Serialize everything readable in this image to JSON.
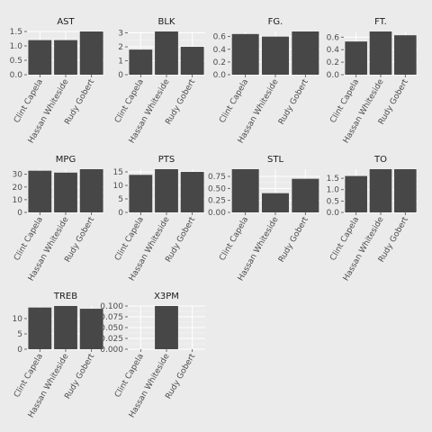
{
  "chart_data": [
    {
      "type": "bar",
      "title": "AST",
      "categories": [
        "Clint Capela",
        "Hassan Whiteside",
        "Rudy Gobert"
      ],
      "values": [
        1.2,
        1.2,
        1.5
      ],
      "ylim": [
        0,
        1.5
      ],
      "yticks": [
        "0.0",
        "0.5",
        "1.0",
        "1.5"
      ]
    },
    {
      "type": "bar",
      "title": "BLK",
      "categories": [
        "Clint Capela",
        "Hassan Whiteside",
        "Rudy Gobert"
      ],
      "values": [
        1.8,
        3.1,
        2.0
      ],
      "ylim": [
        0,
        3.1
      ],
      "yticks": [
        "0",
        "1",
        "2",
        "3"
      ]
    },
    {
      "type": "bar",
      "title": "FG.",
      "categories": [
        "Clint Capela",
        "Hassan Whiteside",
        "Rudy Gobert"
      ],
      "values": [
        0.64,
        0.6,
        0.68
      ],
      "ylim": [
        0,
        0.68
      ],
      "yticks": [
        "0.0",
        "0.2",
        "0.4",
        "0.6"
      ]
    },
    {
      "type": "bar",
      "title": "FT.",
      "categories": [
        "Clint Capela",
        "Hassan Whiteside",
        "Rudy Gobert"
      ],
      "values": [
        0.53,
        0.69,
        0.63
      ],
      "ylim": [
        0,
        0.69
      ],
      "yticks": [
        "0.0",
        "0.2",
        "0.4",
        "0.6"
      ]
    },
    {
      "type": "bar",
      "title": "MPG",
      "categories": [
        "Clint Capela",
        "Hassan Whiteside",
        "Rudy Gobert"
      ],
      "values": [
        32.8,
        31.3,
        34.0
      ],
      "ylim": [
        0,
        34
      ],
      "yticks": [
        "0",
        "10",
        "20",
        "30"
      ]
    },
    {
      "type": "bar",
      "title": "PTS",
      "categories": [
        "Clint Capela",
        "Hassan Whiteside",
        "Rudy Gobert"
      ],
      "values": [
        13.9,
        16.0,
        15.0
      ],
      "ylim": [
        0,
        16
      ],
      "yticks": [
        "0",
        "5",
        "10",
        "15"
      ]
    },
    {
      "type": "bar",
      "title": "STL",
      "categories": [
        "Clint Capela",
        "Hassan Whiteside",
        "Rudy Gobert"
      ],
      "values": [
        0.9,
        0.4,
        0.7
      ],
      "ylim": [
        0,
        0.9
      ],
      "yticks": [
        "0.00",
        "0.25",
        "0.50",
        "0.75"
      ]
    },
    {
      "type": "bar",
      "title": "TO",
      "categories": [
        "Clint Capela",
        "Hassan Whiteside",
        "Rudy Gobert"
      ],
      "values": [
        1.6,
        1.9,
        1.9
      ],
      "ylim": [
        0,
        1.9
      ],
      "yticks": [
        "0.0",
        "0.5",
        "1.0",
        "1.5"
      ]
    },
    {
      "type": "bar",
      "title": "TREB",
      "categories": [
        "Clint Capela",
        "Hassan Whiteside",
        "Rudy Gobert"
      ],
      "values": [
        13.6,
        14.1,
        13.2
      ],
      "ylim": [
        0,
        14.1
      ],
      "yticks": [
        "0",
        "5",
        "10"
      ]
    },
    {
      "type": "bar",
      "title": "X3PM",
      "categories": [
        "Clint Capela",
        "Hassan Whiteside",
        "Rudy Gobert"
      ],
      "values": [
        0,
        0.1,
        0
      ],
      "ylim": [
        0,
        0.1
      ],
      "yticks": [
        "0.000",
        "0.025",
        "0.050",
        "0.075",
        "0.100"
      ]
    }
  ],
  "colors": {
    "background": "#ebebeb",
    "bar": "#474747",
    "grid": "#ffffff",
    "text": "#1a1a1a"
  }
}
